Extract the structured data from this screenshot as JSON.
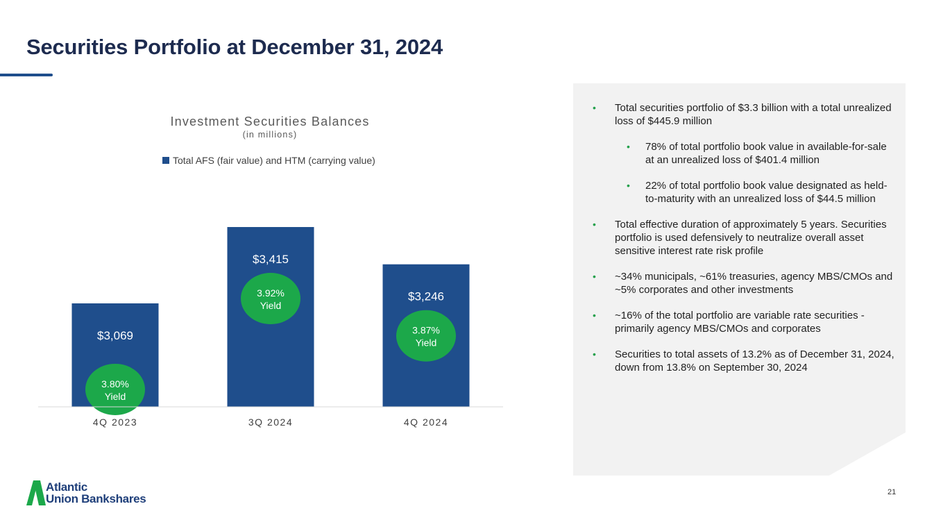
{
  "page": {
    "title": "Securities Portfolio at December 31, 2024",
    "page_number": "21"
  },
  "logo": {
    "line1": "Atlantic",
    "line2": "Union Bankshares"
  },
  "colors": {
    "bar": "#1f4e8c",
    "yield_badge": "#1ca84a",
    "title": "#1d2b4f",
    "bullet": "#22a04b",
    "panel": "#f2f2f2"
  },
  "chart_data": {
    "type": "bar",
    "title": "Investment Securities Balances",
    "subtitle": "(in millions)",
    "legend": "top",
    "grid": false,
    "categories": [
      "4Q 2023",
      "3Q 2024",
      "4Q 2024"
    ],
    "series": [
      {
        "name": "Total AFS (fair value) and HTM (carrying value)",
        "values": [
          3069,
          3415,
          3246
        ],
        "value_labels": [
          "$3,069",
          "$3,415",
          "$3,246"
        ]
      }
    ],
    "annotations": [
      {
        "category": "4Q 2023",
        "yield": "3.80%",
        "label": "Yield"
      },
      {
        "category": "3Q 2024",
        "yield": "3.92%",
        "label": "Yield"
      },
      {
        "category": "4Q 2024",
        "yield": "3.87%",
        "label": "Yield"
      }
    ],
    "ylim": [
      2600,
      3500
    ],
    "xlabel": "",
    "ylabel": ""
  },
  "bullets": [
    {
      "level": 1,
      "text": "Total securities portfolio of $3.3 billion with a total unrealized loss of $445.9 million"
    },
    {
      "level": 2,
      "text": "78% of total portfolio book value in available-for-sale at an unrealized loss of $401.4 million"
    },
    {
      "level": 2,
      "text": "22% of total portfolio book value designated as held-to-maturity with an unrealized loss of $44.5 million"
    },
    {
      "level": 1,
      "text": "Total effective duration of approximately 5 years. Securities portfolio is used defensively to neutralize overall asset sensitive interest rate risk profile"
    },
    {
      "level": 1,
      "text": "~34% municipals, ~61% treasuries, agency MBS/CMOs and ~5% corporates and other investments"
    },
    {
      "level": 1,
      "text": "~16% of the total portfolio are variable rate securities - primarily agency MBS/CMOs and corporates"
    },
    {
      "level": 1,
      "text": "Securities to total assets of 13.2% as of December 31, 2024, down from 13.8% on September 30, 2024"
    }
  ]
}
